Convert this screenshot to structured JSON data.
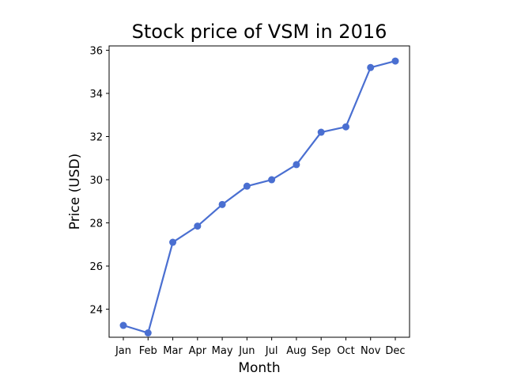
{
  "chart_data": {
    "type": "line",
    "title": "Stock price of VSM in 2016",
    "xlabel": "Month",
    "ylabel": "Price (USD)",
    "categories": [
      "Jan",
      "Feb",
      "Mar",
      "Apr",
      "May",
      "Jun",
      "Jul",
      "Aug",
      "Sep",
      "Oct",
      "Nov",
      "Dec"
    ],
    "values": [
      23.25,
      22.9,
      27.1,
      27.85,
      28.85,
      29.7,
      30.0,
      30.7,
      32.2,
      32.45,
      35.2,
      35.5
    ],
    "ylim": [
      22.7,
      36.2
    ],
    "yticks": [
      24,
      26,
      28,
      30,
      32,
      34,
      36
    ],
    "ytick_labels": [
      "24",
      "26",
      "28",
      "30",
      "32",
      "34",
      "36"
    ],
    "grid": false,
    "markers": true,
    "color": "#4a6fd1"
  }
}
